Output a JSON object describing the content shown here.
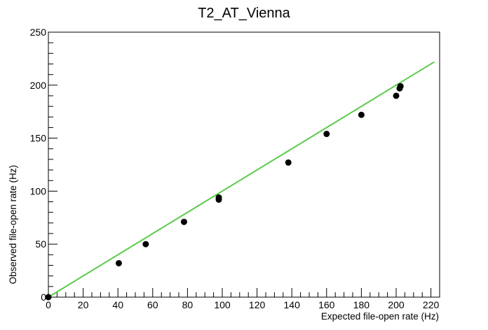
{
  "chart_data": {
    "type": "scatter",
    "title": "T2_AT_Vienna",
    "xlabel": "Expected file-open rate (Hz)",
    "ylabel": "Observed file-open rate (Hz)",
    "xlim": [
      0,
      225
    ],
    "ylim": [
      0,
      250
    ],
    "x_ticks": [
      0,
      20,
      40,
      60,
      80,
      100,
      120,
      140,
      160,
      180,
      200,
      220
    ],
    "y_ticks": [
      0,
      50,
      100,
      150,
      200,
      250
    ],
    "grid": false,
    "legend": "none",
    "series": [
      {
        "kind": "points",
        "color": "#000000",
        "x": [
          0,
          40.5,
          56,
          78,
          98,
          98,
          138,
          160,
          180,
          200,
          202,
          202.5
        ],
        "y": [
          0,
          32,
          50,
          71,
          94,
          92,
          127,
          154,
          172,
          190,
          197,
          199
        ]
      },
      {
        "kind": "line",
        "color": "#5ccc4c",
        "x": [
          0,
          222
        ],
        "y": [
          0,
          222
        ]
      }
    ]
  }
}
